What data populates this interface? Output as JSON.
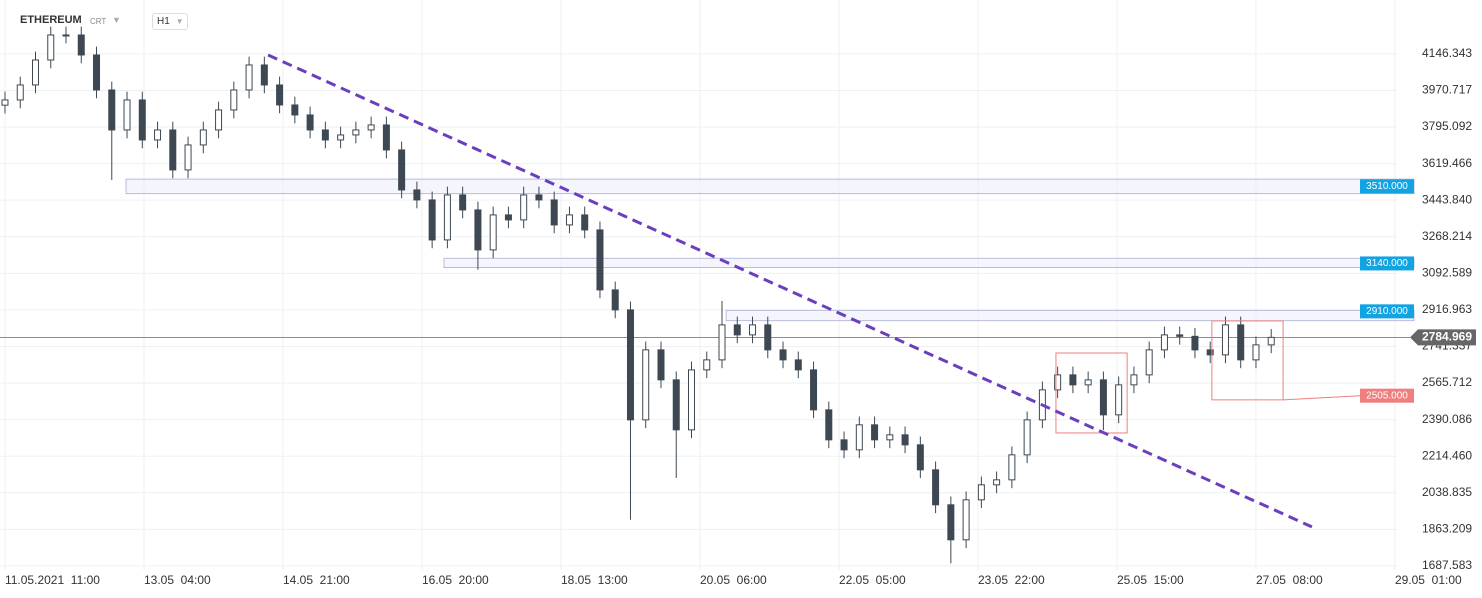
{
  "header": {
    "symbol": "ETHEREUM",
    "symbol_tag": "CRT",
    "interval": "H1"
  },
  "chart_data": {
    "type": "candlestick",
    "x": [
      0,
      4.5,
      9,
      13.5,
      18,
      22.5,
      27,
      31.5,
      36,
      40.5,
      45,
      49.5,
      54,
      58.5,
      63,
      67.5,
      72,
      76.5,
      81,
      85.5,
      90,
      94.5,
      99,
      103.5,
      108,
      112.5,
      117,
      121.5,
      126,
      130.5,
      135,
      139.5,
      144,
      148.5,
      153,
      157.5,
      162,
      166.5,
      171,
      175.5,
      180,
      184.5,
      189,
      193.5,
      198,
      202.5,
      207,
      211.5,
      216,
      220.5,
      225,
      229.5,
      234,
      238.5,
      243,
      247.5,
      252,
      256.5,
      261,
      265.5,
      270,
      274.5,
      279,
      283.5,
      288,
      292.5,
      297,
      301.5,
      306,
      310.5,
      315,
      319.5,
      324,
      328.5,
      333,
      337.5,
      342,
      346.5,
      351,
      355.5,
      360,
      364.5,
      369,
      373.5
    ],
    "open": [
      3900,
      3925,
      3997,
      4117,
      4237,
      4237,
      4141,
      3973,
      3781,
      3925,
      3733,
      3781,
      3589,
      3709,
      3781,
      3877,
      3973,
      4093,
      3997,
      3901,
      3853,
      3781,
      3733,
      3757,
      3781,
      3805,
      3685,
      3493,
      3445,
      3253,
      3469,
      3397,
      3205,
      3373,
      3349,
      3469,
      3445,
      3325,
      3373,
      3301,
      3013,
      2917,
      2389,
      2725,
      2581,
      2341,
      2629,
      2677,
      2845,
      2797,
      2845,
      2725,
      2677,
      2629,
      2437,
      2293,
      2245,
      2365,
      2293,
      2317,
      2269,
      2149,
      1981,
      1813,
      2005,
      2077,
      2101,
      2221,
      2389,
      2533,
      2605,
      2557,
      2581,
      2413,
      2557,
      2605,
      2725,
      2797,
      2790,
      2725,
      2701,
      2845,
      2677,
      2749
    ],
    "high": [
      3965,
      4037,
      4157,
      4277,
      4277,
      4277,
      4181,
      4013,
      3965,
      3965,
      3821,
      3821,
      3749,
      3821,
      3917,
      4013,
      4133,
      4133,
      4037,
      3941,
      3893,
      3821,
      3797,
      3821,
      3845,
      3845,
      3725,
      3533,
      3485,
      3509,
      3509,
      3437,
      3413,
      3413,
      3509,
      3509,
      3485,
      3413,
      3413,
      3341,
      3053,
      2957,
      2765,
      2765,
      2621,
      2669,
      2717,
      2960,
      2885,
      2885,
      2885,
      2765,
      2717,
      2669,
      2477,
      2333,
      2405,
      2405,
      2357,
      2357,
      2309,
      2189,
      2021,
      2045,
      2117,
      2141,
      2261,
      2429,
      2573,
      2645,
      2645,
      2621,
      2621,
      2597,
      2645,
      2765,
      2837,
      2837,
      2830,
      2765,
      2885,
      2885,
      2789,
      2825
    ],
    "low": [
      3860,
      3885,
      3957,
      4077,
      4197,
      4101,
      3933,
      3541,
      3741,
      3693,
      3693,
      3549,
      3549,
      3669,
      3741,
      3837,
      3933,
      3957,
      3861,
      3813,
      3741,
      3693,
      3693,
      3717,
      3741,
      3645,
      3453,
      3405,
      3213,
      3213,
      3357,
      3110,
      3165,
      3309,
      3309,
      3405,
      3285,
      3285,
      3261,
      2973,
      2877,
      1909,
      2349,
      2541,
      2110,
      2301,
      2589,
      2637,
      2757,
      2757,
      2685,
      2637,
      2589,
      2397,
      2253,
      2205,
      2205,
      2253,
      2253,
      2229,
      2109,
      1941,
      1700,
      1773,
      1965,
      2037,
      2061,
      2181,
      2349,
      2493,
      2517,
      2517,
      2340,
      2373,
      2517,
      2565,
      2685,
      2750,
      2685,
      2661,
      2661,
      2637,
      2637,
      2709
    ],
    "close": [
      3925,
      3997,
      4117,
      4237,
      4237,
      4141,
      3973,
      3781,
      3925,
      3733,
      3781,
      3589,
      3709,
      3781,
      3877,
      3973,
      4093,
      3997,
      3901,
      3853,
      3781,
      3733,
      3757,
      3781,
      3805,
      3685,
      3493,
      3445,
      3253,
      3469,
      3397,
      3205,
      3373,
      3349,
      3469,
      3445,
      3325,
      3373,
      3301,
      3013,
      2917,
      2389,
      2725,
      2581,
      2341,
      2629,
      2677,
      2845,
      2797,
      2845,
      2725,
      2677,
      2629,
      2437,
      2293,
      2245,
      2365,
      2293,
      2317,
      2269,
      2149,
      1981,
      1813,
      2005,
      2077,
      2101,
      2221,
      2389,
      2533,
      2605,
      2557,
      2581,
      2413,
      2557,
      2605,
      2725,
      2797,
      2790,
      2725,
      2701,
      2845,
      2677,
      2749,
      2785
    ],
    "up_color": "#ffffff",
    "down_color": "#3d4852",
    "xlim": [
      -1.47,
      410.6
    ],
    "xticks": [
      {
        "value": 0,
        "label": "11.05.2021  11:00"
      },
      {
        "value": 41,
        "label": "13.05  04:00"
      },
      {
        "value": 82,
        "label": "14.05  21:00"
      },
      {
        "value": 123,
        "label": "16.05  20:00"
      },
      {
        "value": 164,
        "label": "18.05  13:00"
      },
      {
        "value": 205,
        "label": "20.05  06:00"
      },
      {
        "value": 246,
        "label": "22.05  05:00"
      },
      {
        "value": 287,
        "label": "23.05  22:00"
      },
      {
        "value": 328,
        "label": "25.05  15:00"
      },
      {
        "value": 369,
        "label": "27.05  08:00"
      },
      {
        "value": 410,
        "label": "29.05  01:00"
      }
    ],
    "ylim": [
      1668,
      4405
    ],
    "yticks": [
      4146.343,
      3970.717,
      3795.092,
      3619.466,
      {
        "value": 3443.84,
        "label": "3443.840"
      },
      3268.214,
      3092.589,
      2916.963,
      2741.337,
      2565.712,
      2390.086,
      {
        "value": 2214.46,
        "label": "2214.460"
      },
      2038.835,
      1863.209,
      1687.583
    ],
    "grid": true,
    "last_price": {
      "value": 2784.969,
      "label": "2784.969"
    },
    "zones": [
      {
        "value": 3510,
        "label": "3510.000",
        "low": 3475,
        "high": 3545,
        "start": 35.7
      },
      {
        "value": 3140,
        "label": "3140.000",
        "low": 3120,
        "high": 3165,
        "start": 129.5
      },
      {
        "value": 2910,
        "label": "2910.000",
        "low": 2865,
        "high": 2915,
        "start": 212.7
      }
    ],
    "zone_color": "#12a3e3",
    "boxes": [
      {
        "x": [
          310,
          331
        ],
        "y": [
          2326,
          2710
        ]
      },
      {
        "x": [
          356,
          377
        ],
        "y": [
          2485,
          2864
        ]
      }
    ],
    "box_target": {
      "value": 2505,
      "label": "2505.000"
    },
    "box_color": "#ef7f7f",
    "trendline": {
      "x": [
        77.6,
        385.5
      ],
      "y": [
        4141,
        1875
      ],
      "color": "#6a3fbf"
    }
  }
}
